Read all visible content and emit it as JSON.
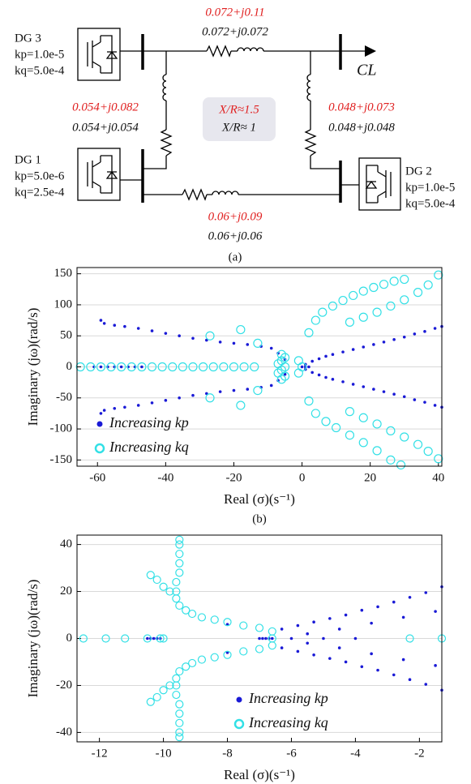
{
  "diagram": {
    "sources": [
      {
        "name": "DG 3",
        "kp": "kp=1.0e-5",
        "kq": "kq=5.0e-4"
      },
      {
        "name": "DG 1",
        "kp": "kp=5.0e-6",
        "kq": "kq=2.5e-4"
      },
      {
        "name": "DG 2",
        "kp": "kp=1.0e-5",
        "kq": "kq=5.0e-4"
      }
    ],
    "lines": [
      {
        "new": "0.072+j0.11",
        "old": "0.072+j0.072"
      },
      {
        "new": "0.054+j0.082",
        "old": "0.054+j0.054"
      },
      {
        "new": "0.048+j0.073",
        "old": "0.048+j0.048"
      },
      {
        "new": "0.06+j0.09",
        "old": "0.06+j0.06"
      }
    ],
    "ratio": {
      "new": "X/R≈1.5",
      "old": "X/R≈ 1"
    },
    "load": "CL",
    "caption": "(a)"
  },
  "chart_data": [
    {
      "type": "scatter",
      "caption": "(b)",
      "xlabel": "Real (σ)(s⁻¹)",
      "ylabel": "Imaginary (jω)(rad/s)",
      "xlim": [
        -66,
        41
      ],
      "ylim": [
        -160,
        160
      ],
      "xticks": [
        -60,
        -40,
        -20,
        0,
        20,
        40
      ],
      "yticks": [
        -150,
        -100,
        -50,
        0,
        50,
        100,
        150
      ],
      "grid": true,
      "legend": "lower left",
      "series": [
        {
          "name": "Increasing kp",
          "color": "#1a1ad6",
          "marker": "dot",
          "x": [
            -61,
            -59,
            -57,
            -55,
            -53,
            -51,
            -49,
            -47,
            0,
            1,
            2,
            -59,
            -58,
            -55,
            -52,
            -48,
            -44,
            -40,
            -36,
            -32,
            -28,
            -24,
            -20,
            -16,
            -12,
            -9,
            -7,
            -5,
            -59,
            -58,
            -55,
            -52,
            -48,
            -44,
            -40,
            -36,
            -32,
            -28,
            -24,
            -20,
            -16,
            -12,
            -9,
            -7,
            -5,
            1,
            3,
            5,
            7,
            9,
            12,
            15,
            18,
            21,
            24,
            27,
            30,
            33,
            36,
            39,
            41,
            1,
            3,
            5,
            7,
            9,
            12,
            15,
            18,
            21,
            24,
            27,
            30,
            33,
            36,
            39,
            41
          ],
          "values": [
            0,
            0,
            0,
            0,
            0,
            0,
            0,
            0,
            0,
            0,
            0,
            75,
            70,
            67,
            65,
            62,
            58,
            54,
            50,
            46,
            43,
            40,
            38,
            36,
            33,
            30,
            22,
            12,
            -75,
            -70,
            -67,
            -65,
            -62,
            -58,
            -54,
            -50,
            -46,
            -43,
            -40,
            -38,
            -36,
            -33,
            -30,
            -22,
            -12,
            4,
            9,
            13,
            17,
            20,
            24,
            28,
            32,
            36,
            40,
            44,
            48,
            53,
            57,
            62,
            65,
            -4,
            -9,
            -13,
            -17,
            -20,
            -24,
            -28,
            -32,
            -36,
            -40,
            -44,
            -48,
            -53,
            -57,
            -62,
            -65
          ]
        },
        {
          "name": "Increasing kq",
          "color": "#33e0e6",
          "marker": "open-circle",
          "x": [
            -65,
            -62,
            -59,
            -56,
            -53,
            -50,
            -47,
            -44,
            -41,
            -38,
            -35,
            -32,
            -29,
            -26,
            -23,
            -20,
            -17,
            -14,
            -6,
            -5,
            -6,
            -7,
            -5,
            -6,
            -7,
            -5,
            -6,
            -27,
            -27,
            -13,
            -13,
            -18,
            -18,
            0,
            -1,
            -1,
            2,
            4,
            6,
            9,
            12,
            15,
            18,
            21,
            24,
            27,
            30,
            14,
            18,
            22,
            26,
            30,
            34,
            37,
            40,
            2,
            4,
            7,
            10,
            14,
            18,
            22,
            26,
            29,
            14,
            18,
            22,
            26,
            30,
            34,
            37,
            40
          ],
          "values": [
            0,
            0,
            0,
            0,
            0,
            0,
            0,
            0,
            0,
            0,
            0,
            0,
            0,
            0,
            0,
            0,
            0,
            0,
            20,
            15,
            10,
            5,
            0,
            -5,
            -10,
            -15,
            -20,
            50,
            -50,
            38,
            -38,
            60,
            -62,
            0,
            10,
            -10,
            55,
            75,
            88,
            98,
            107,
            115,
            122,
            128,
            133,
            138,
            141,
            72,
            80,
            88,
            98,
            108,
            120,
            132,
            148,
            -55,
            -75,
            -88,
            -98,
            -110,
            -122,
            -135,
            -150,
            -158,
            -72,
            -82,
            -92,
            -103,
            -113,
            -125,
            -136,
            -148
          ]
        }
      ]
    },
    {
      "type": "scatter",
      "caption": "(c)",
      "xlabel": "Real (σ)(s⁻¹)",
      "ylabel": "Imaginary (jω)(rad/s)",
      "xlim": [
        -12.7,
        -1.3
      ],
      "ylim": [
        -44,
        44
      ],
      "xticks": [
        -12,
        -10,
        -8,
        -6,
        -4,
        -2
      ],
      "yticks": [
        -40,
        -20,
        0,
        20,
        40
      ],
      "grid": true,
      "legend": "lower center",
      "series": [
        {
          "name": "Increasing kp",
          "color": "#1a1ad6",
          "marker": "dot",
          "x": [
            -10.5,
            -10.4,
            -10.3,
            -10.2,
            -10.1,
            -7,
            -6.9,
            -6.8,
            -6.7,
            -6.6,
            -8,
            -8,
            -6,
            -5,
            -4,
            -6.3,
            -5.8,
            -5.3,
            -4.8,
            -4.3,
            -3.8,
            -3.3,
            -2.8,
            -2.3,
            -1.8,
            -1.3,
            -6.3,
            -5.8,
            -5.3,
            -4.8,
            -4.3,
            -3.8,
            -3.3,
            -2.8,
            -2.3,
            -1.8,
            -1.3,
            -5.5,
            -4.5,
            -3.5,
            -2.5,
            -1.5,
            -5.5,
            -4.5,
            -3.5,
            -2.5,
            -1.5
          ],
          "values": [
            0,
            0,
            0,
            0,
            0,
            0,
            0,
            0,
            0,
            0,
            6,
            -6,
            0,
            0,
            0,
            4,
            5.5,
            7,
            8.5,
            10,
            12,
            13.5,
            15.5,
            17.5,
            19.5,
            22,
            -4,
            -5.5,
            -7,
            -8.5,
            -10,
            -12,
            -13.5,
            -15.5,
            -17.5,
            -19.5,
            -22,
            2,
            4,
            6.5,
            9,
            11.5,
            -2,
            -4,
            -6.5,
            -9,
            -11.5
          ]
        },
        {
          "name": "Increasing kq",
          "color": "#33e0e6",
          "marker": "open-circle",
          "x": [
            -12.5,
            -11.8,
            -11.2,
            -10.5,
            -10.1,
            -10,
            -2.3,
            -1.3,
            -6.6,
            -6.6,
            -6.6,
            -7,
            -7.5,
            -8,
            -8.4,
            -8.8,
            -9.1,
            -9.3,
            -9.5,
            -9.6,
            -9.6,
            -9.6,
            -9.5,
            -9.5,
            -9.5,
            -9.5,
            -9.5,
            -9.8,
            -10,
            -10.2,
            -10.4,
            -7,
            -7.5,
            -8,
            -8.4,
            -8.8,
            -9.1,
            -9.3,
            -9.5,
            -9.6,
            -9.6,
            -9.6,
            -9.5,
            -9.5,
            -9.5,
            -9.5,
            -9.5,
            -9.8,
            -10,
            -10.2,
            -10.4
          ],
          "values": [
            0,
            0,
            0,
            0,
            0,
            0,
            0,
            0,
            0,
            3,
            -3,
            4.5,
            5.5,
            7,
            8,
            9,
            10.5,
            12,
            14,
            17,
            20,
            24,
            28,
            32,
            36,
            40,
            42,
            20,
            22,
            25,
            27,
            -4.5,
            -5.5,
            -7,
            -8,
            -9,
            -10.5,
            -12,
            -14,
            -17,
            -20,
            -24,
            -28,
            -32,
            -36,
            -40,
            -42,
            -20,
            -22,
            -25,
            -27
          ]
        }
      ]
    }
  ]
}
